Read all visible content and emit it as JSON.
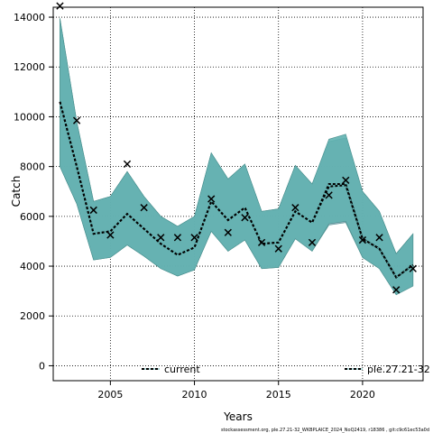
{
  "chart_data": {
    "type": "line",
    "title": "",
    "xlabel": "Years",
    "ylabel": "Catch",
    "xlim": [
      2001.6,
      2023.6
    ],
    "ylim": [
      -600,
      14400
    ],
    "x_ticks": [
      2005,
      2010,
      2015,
      2020
    ],
    "y_ticks": [
      0,
      2000,
      4000,
      6000,
      8000,
      10000,
      12000,
      14000
    ],
    "grid": true,
    "legend_placement": "bottom",
    "colors": {
      "band_fill": "#5fb1b0",
      "band_fill_secondary": "#8fa9b8",
      "band_edge": "#4a8f8e",
      "median_line": "#000000",
      "median_dash": "#5fb1b0",
      "observed_marker": "#000000",
      "grid": "#000000"
    },
    "years": [
      2002,
      2003,
      2004,
      2005,
      2006,
      2007,
      2008,
      2009,
      2010,
      2011,
      2012,
      2013,
      2014,
      2015,
      2016,
      2017,
      2018,
      2019,
      2020,
      2021,
      2022,
      2023
    ],
    "series": [
      {
        "name": "current",
        "median": [
          10600,
          8000,
          5300,
          5400,
          6100,
          5500,
          4900,
          4450,
          4750,
          6600,
          5850,
          6350,
          4900,
          4950,
          6200,
          5750,
          7300,
          7300,
          5100,
          4700,
          3550,
          4050
        ],
        "upper": [
          13950,
          9800,
          6600,
          6800,
          7800,
          6800,
          6000,
          5600,
          6000,
          8550,
          7500,
          8100,
          6200,
          6300,
          8050,
          7300,
          9100,
          9300,
          7000,
          6200,
          4500,
          5300
        ],
        "lower": [
          8000,
          6500,
          4250,
          4350,
          4850,
          4400,
          3900,
          3600,
          3850,
          5400,
          4600,
          5050,
          3900,
          3950,
          5100,
          4600,
          5700,
          5800,
          4350,
          3900,
          2850,
          3200
        ]
      },
      {
        "name": "ple.27.21-32",
        "median": [
          10600,
          8000,
          5300,
          5400,
          6100,
          5500,
          4900,
          4450,
          4750,
          6600,
          5850,
          6350,
          4900,
          4950,
          6200,
          5750,
          7200,
          7250,
          5100,
          4700,
          3550,
          4050
        ],
        "upper": [
          13950,
          9800,
          6600,
          6800,
          7800,
          6800,
          6000,
          5600,
          6000,
          8550,
          7500,
          8100,
          6200,
          6300,
          8050,
          7300,
          9000,
          9150,
          7000,
          6200,
          4500,
          5300
        ],
        "lower": [
          8000,
          6500,
          4250,
          4350,
          4850,
          4400,
          3900,
          3600,
          3850,
          5400,
          4600,
          5050,
          3900,
          3950,
          5100,
          4600,
          5650,
          5750,
          4350,
          3900,
          2850,
          3200
        ]
      }
    ],
    "observed": {
      "marker": "x",
      "values": [
        14450,
        9850,
        6250,
        5250,
        8100,
        6350,
        5150,
        5150,
        5150,
        6700,
        5350,
        5950,
        4950,
        4700,
        6350,
        4950,
        6850,
        7450,
        5050,
        5150,
        3050,
        3900
      ]
    }
  },
  "footnote": "stockassessment.org, ple.27.21-32_WKBPLAICE_2024_NoQ2419, r18386 , git:c9c61ec53a0d"
}
